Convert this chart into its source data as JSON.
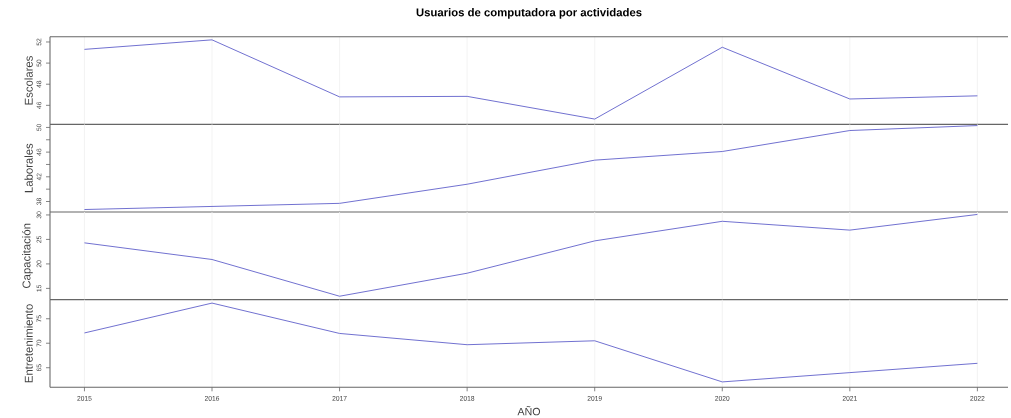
{
  "chart_data": [
    {
      "type": "line",
      "title": "Usuarios de computadora por actividades",
      "ylabel": "Escolares",
      "tick_labels": "y",
      "grid": "x",
      "color": "#6666cc",
      "x": [
        2015,
        2016,
        2017,
        2018,
        2019,
        2020,
        2021,
        2022
      ],
      "values": [
        51.3,
        52.2,
        46.8,
        46.85,
        44.7,
        51.5,
        46.6,
        46.9
      ],
      "xlim": [
        2014.73,
        2022.24
      ],
      "xticks": [
        2015,
        2016,
        2017,
        2018,
        2019,
        2020,
        2021,
        2022
      ],
      "ylim": [
        44.2,
        52.5
      ],
      "yticks": [
        46,
        48,
        50,
        52
      ]
    },
    {
      "type": "line",
      "ylabel": "Laborales",
      "tick_labels": "y",
      "grid": "x",
      "color": "#6666cc",
      "x": [
        2015,
        2016,
        2017,
        2018,
        2019,
        2020,
        2021,
        2022
      ],
      "values": [
        36.7,
        37.2,
        37.7,
        40.8,
        44.7,
        46.1,
        49.5,
        50.3
      ],
      "xlim": [
        2014.73,
        2022.24
      ],
      "xticks": [
        2015,
        2016,
        2017,
        2018,
        2019,
        2020,
        2021,
        2022
      ],
      "ylim": [
        36.3,
        50.5
      ],
      "yticks": [
        38,
        {
          "value": 40,
          "label": null
        },
        42,
        {
          "value": 44,
          "label": null
        },
        46,
        {
          "value": 48,
          "label": null
        },
        50
      ]
    },
    {
      "type": "line",
      "ylabel": "Capacitación",
      "tick_labels": "y",
      "grid": "x",
      "color": "#6666cc",
      "x": [
        2015,
        2016,
        2017,
        2018,
        2019,
        2020,
        2021,
        2022
      ],
      "values": [
        24.3,
        20.9,
        13.4,
        18.1,
        24.7,
        28.7,
        26.9,
        30.1
      ],
      "xlim": [
        2014.73,
        2022.24
      ],
      "xticks": [
        2015,
        2016,
        2017,
        2018,
        2019,
        2020,
        2021,
        2022
      ],
      "ylim": [
        12.7,
        30.6
      ],
      "yticks": [
        15,
        20,
        25,
        30
      ]
    },
    {
      "type": "line",
      "ylabel": "Entretenimiento",
      "xlabel": "AÑO",
      "grid": "x",
      "color": "#6666cc",
      "x": [
        2015,
        2016,
        2017,
        2018,
        2019,
        2020,
        2021,
        2022
      ],
      "values": [
        72.1,
        78.2,
        72.0,
        69.7,
        70.5,
        62.1,
        64.0,
        65.9
      ],
      "xlim": [
        2014.73,
        2022.24
      ],
      "xticks": [
        2015,
        2016,
        2017,
        2018,
        2019,
        2020,
        2021,
        2022
      ],
      "ylim": [
        61.0,
        78.9
      ],
      "yticks": [
        65,
        70,
        75
      ]
    }
  ]
}
